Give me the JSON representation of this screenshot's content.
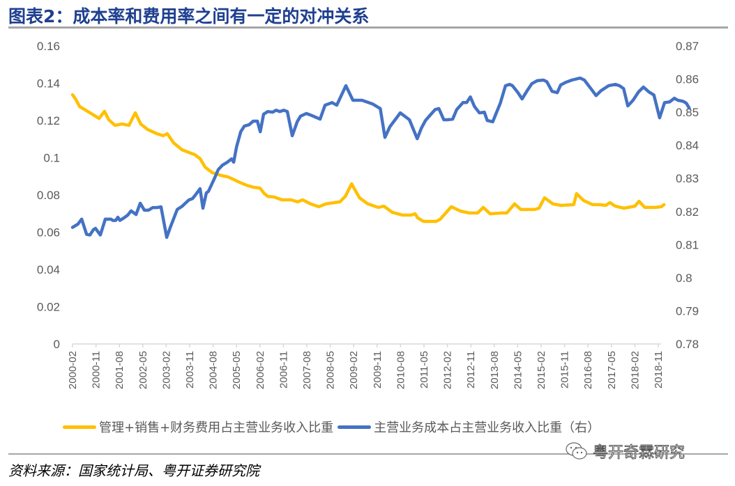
{
  "title": "图表2：成本率和费用率之间有一定的对冲关系",
  "source": "资料来源：国家统计局、粤开证券研究院",
  "watermark": {
    "icon": "wechat-icon",
    "text": "粤开奇霖研究"
  },
  "legend": [
    {
      "label": "管理+销售+财务费用占主营业务收入比重",
      "color": "#FFC000"
    },
    {
      "label": "主营业务成本占主营业务收入比重（右）",
      "color": "#4472C4"
    }
  ],
  "chart_data": {
    "type": "line",
    "title": "图表2：成本率和费用率之间有一定的对冲关系",
    "xlabel": "",
    "ylabel_left": "",
    "ylabel_right": "",
    "x_start": "2000-02",
    "x_end": "2018-12",
    "x_ticks": [
      "2000-02",
      "2000-11",
      "2001-08",
      "2002-05",
      "2003-02",
      "2003-11",
      "2004-08",
      "2005-05",
      "2006-02",
      "2006-11",
      "2007-08",
      "2008-05",
      "2009-02",
      "2009-11",
      "2010-08",
      "2011-05",
      "2012-02",
      "2012-11",
      "2013-08",
      "2014-05",
      "2015-02",
      "2015-11",
      "2016-08",
      "2017-05",
      "2018-02",
      "2018-11"
    ],
    "y_left": {
      "range": [
        0,
        0.16
      ],
      "ticks": [
        "0.16",
        "0.14",
        "0.12",
        "0.1",
        "0.08",
        "0.06",
        "0.04",
        "0.02",
        "0"
      ]
    },
    "y_right": {
      "range": [
        0.78,
        0.87
      ],
      "ticks": [
        "0.87",
        "0.86",
        "0.85",
        "0.84",
        "0.83",
        "0.82",
        "0.81",
        "0.8",
        "0.79",
        "0.78"
      ]
    },
    "grid": false,
    "legend_position": "bottom",
    "series": [
      {
        "name": "管理+销售+财务费用占主营业务收入比重",
        "axis": "left",
        "color": "#FFC000",
        "points_month_value": [
          [
            0,
            0.1338
          ],
          [
            1.3,
            0.1312
          ],
          [
            2.7,
            0.1275
          ],
          [
            6.7,
            0.1241
          ],
          [
            10.2,
            0.1211
          ],
          [
            12.3,
            0.1249
          ],
          [
            13.9,
            0.1204
          ],
          [
            16.3,
            0.1174
          ],
          [
            19,
            0.1181
          ],
          [
            21.7,
            0.1174
          ],
          [
            24.1,
            0.1241
          ],
          [
            26.2,
            0.1181
          ],
          [
            28.9,
            0.1151
          ],
          [
            32.4,
            0.1129
          ],
          [
            34.8,
            0.1118
          ],
          [
            36.4,
            0.1129
          ],
          [
            38.8,
            0.108
          ],
          [
            42,
            0.1043
          ],
          [
            45.5,
            0.1024
          ],
          [
            46.9,
            0.1017
          ],
          [
            49,
            0.0995
          ],
          [
            50.9,
            0.095
          ],
          [
            53.6,
            0.092
          ],
          [
            57,
            0.0905
          ],
          [
            59.7,
            0.0897
          ],
          [
            62.1,
            0.0882
          ],
          [
            64.3,
            0.0867
          ],
          [
            66.9,
            0.0852
          ],
          [
            69.6,
            0.0841
          ],
          [
            72,
            0.0837
          ],
          [
            73.7,
            0.0807
          ],
          [
            75,
            0.0792
          ],
          [
            77.4,
            0.0789
          ],
          [
            80.4,
            0.0774
          ],
          [
            83.9,
            0.0774
          ],
          [
            86.5,
            0.0763
          ],
          [
            88.4,
            0.0774
          ],
          [
            91.4,
            0.0752
          ],
          [
            94.6,
            0.0737
          ],
          [
            97.3,
            0.0752
          ],
          [
            102.7,
            0.0763
          ],
          [
            104.8,
            0.0793
          ],
          [
            107.2,
            0.086
          ],
          [
            110.2,
            0.0785
          ],
          [
            113.4,
            0.0752
          ],
          [
            117.4,
            0.0733
          ],
          [
            119.6,
            0.074
          ],
          [
            122.8,
            0.0707
          ],
          [
            126.8,
            0.0692
          ],
          [
            130,
            0.0692
          ],
          [
            131.6,
            0.0699
          ],
          [
            132.6,
            0.0677
          ],
          [
            134.8,
            0.0658
          ],
          [
            139.6,
            0.0658
          ],
          [
            141.2,
            0.0669
          ],
          [
            145.5,
            0.0737
          ],
          [
            148.9,
            0.0714
          ],
          [
            152.4,
            0.0703
          ],
          [
            155.6,
            0.0703
          ],
          [
            157.8,
            0.0733
          ],
          [
            160.4,
            0.0699
          ],
          [
            165,
            0.0703
          ],
          [
            166.8,
            0.0703
          ],
          [
            169.8,
            0.0752
          ],
          [
            172.2,
            0.0722
          ],
          [
            177.5,
            0.0722
          ],
          [
            179.2,
            0.0729
          ],
          [
            181.3,
            0.0785
          ],
          [
            184.5,
            0.0752
          ],
          [
            187.7,
            0.0744
          ],
          [
            192.5,
            0.0748
          ],
          [
            193.6,
            0.0807
          ],
          [
            196.3,
            0.077
          ],
          [
            199.8,
            0.0748
          ],
          [
            202.4,
            0.0748
          ],
          [
            204.8,
            0.0744
          ],
          [
            206.4,
            0.0759
          ],
          [
            208.5,
            0.074
          ],
          [
            211.8,
            0.0729
          ],
          [
            216,
            0.074
          ],
          [
            217.6,
            0.0766
          ],
          [
            219.8,
            0.0733
          ],
          [
            223.8,
            0.0733
          ],
          [
            226.2,
            0.0737
          ],
          [
            227.2,
            0.0748
          ]
        ]
      },
      {
        "name": "主营业务成本占主营业务收入比重（右）",
        "axis": "right",
        "color": "#4472C4",
        "points_month_value": [
          [
            0,
            0.8152
          ],
          [
            2.1,
            0.8162
          ],
          [
            3.5,
            0.8177
          ],
          [
            5.4,
            0.8131
          ],
          [
            6.7,
            0.8129
          ],
          [
            8,
            0.8145
          ],
          [
            8.8,
            0.8149
          ],
          [
            10.7,
            0.8129
          ],
          [
            12.6,
            0.8177
          ],
          [
            14.7,
            0.8177
          ],
          [
            15.5,
            0.8173
          ],
          [
            16.6,
            0.8173
          ],
          [
            17.4,
            0.8183
          ],
          [
            18.2,
            0.8173
          ],
          [
            19.8,
            0.8181
          ],
          [
            21.2,
            0.8189
          ],
          [
            22.5,
            0.8202
          ],
          [
            24.4,
            0.8191
          ],
          [
            26,
            0.8225
          ],
          [
            27.6,
            0.8204
          ],
          [
            29.2,
            0.8204
          ],
          [
            30.8,
            0.8212
          ],
          [
            32.4,
            0.8212
          ],
          [
            34,
            0.8214
          ],
          [
            36.2,
            0.8122
          ],
          [
            37.5,
            0.8151
          ],
          [
            40.2,
            0.8206
          ],
          [
            42.1,
            0.8216
          ],
          [
            44.7,
            0.8235
          ],
          [
            46.1,
            0.8239
          ],
          [
            47.4,
            0.8252
          ],
          [
            49,
            0.8269
          ],
          [
            50.1,
            0.821
          ],
          [
            51.4,
            0.8256
          ],
          [
            52.2,
            0.8261
          ],
          [
            54.4,
            0.8298
          ],
          [
            56,
            0.8327
          ],
          [
            57.6,
            0.834
          ],
          [
            59.5,
            0.8349
          ],
          [
            61.1,
            0.8359
          ],
          [
            61.9,
            0.8349
          ],
          [
            63,
            0.8395
          ],
          [
            64.6,
            0.8441
          ],
          [
            66,
            0.8458
          ],
          [
            67.8,
            0.8462
          ],
          [
            69.4,
            0.8473
          ],
          [
            71,
            0.8473
          ],
          [
            72.1,
            0.8441
          ],
          [
            73.4,
            0.8494
          ],
          [
            75,
            0.8502
          ],
          [
            76.9,
            0.85
          ],
          [
            78.2,
            0.8506
          ],
          [
            79.6,
            0.8502
          ],
          [
            81.2,
            0.8506
          ],
          [
            82.5,
            0.8502
          ],
          [
            84.4,
            0.8429
          ],
          [
            86.3,
            0.8471
          ],
          [
            87.6,
            0.8488
          ],
          [
            89.8,
            0.8496
          ],
          [
            91.9,
            0.849
          ],
          [
            95.1,
            0.8479
          ],
          [
            97,
            0.8521
          ],
          [
            99.7,
            0.8529
          ],
          [
            101.5,
            0.8521
          ],
          [
            105,
            0.858
          ],
          [
            107.7,
            0.8536
          ],
          [
            111.2,
            0.8536
          ],
          [
            115.2,
            0.8525
          ],
          [
            118.2,
            0.8511
          ],
          [
            120,
            0.8424
          ],
          [
            121.9,
            0.8456
          ],
          [
            125.9,
            0.8498
          ],
          [
            129.4,
            0.8477
          ],
          [
            132.4,
            0.842
          ],
          [
            134,
            0.8452
          ],
          [
            135.6,
            0.8475
          ],
          [
            137.5,
            0.8492
          ],
          [
            139.3,
            0.8508
          ],
          [
            140.7,
            0.8511
          ],
          [
            142.6,
            0.8477
          ],
          [
            143.9,
            0.8477
          ],
          [
            146,
            0.8479
          ],
          [
            147.6,
            0.8508
          ],
          [
            150,
            0.8529
          ],
          [
            151.4,
            0.8529
          ],
          [
            152.8,
            0.8546
          ],
          [
            154.4,
            0.8517
          ],
          [
            156.3,
            0.8498
          ],
          [
            158.2,
            0.85
          ],
          [
            159.3,
            0.8475
          ],
          [
            161.4,
            0.8471
          ],
          [
            162.7,
            0.8496
          ],
          [
            164.3,
            0.8527
          ],
          [
            166.3,
            0.858
          ],
          [
            167.9,
            0.8584
          ],
          [
            169,
            0.858
          ],
          [
            171.1,
            0.8559
          ],
          [
            172.7,
            0.854
          ],
          [
            174.8,
            0.8567
          ],
          [
            176.4,
            0.8586
          ],
          [
            178.5,
            0.8595
          ],
          [
            180.9,
            0.8597
          ],
          [
            182.2,
            0.8592
          ],
          [
            184.2,
            0.8563
          ],
          [
            186.2,
            0.8559
          ],
          [
            187.5,
            0.8582
          ],
          [
            189.4,
            0.859
          ],
          [
            191.8,
            0.8597
          ],
          [
            195,
            0.8603
          ],
          [
            196.6,
            0.8597
          ],
          [
            199.5,
            0.8567
          ],
          [
            201.1,
            0.855
          ],
          [
            203,
            0.8565
          ],
          [
            205.9,
            0.858
          ],
          [
            208.5,
            0.8584
          ],
          [
            210.1,
            0.858
          ],
          [
            211.7,
            0.8571
          ],
          [
            213.3,
            0.8519
          ],
          [
            215.3,
            0.8536
          ],
          [
            217.4,
            0.8561
          ],
          [
            219.3,
            0.8576
          ],
          [
            221.4,
            0.8561
          ],
          [
            223.3,
            0.8552
          ],
          [
            225.5,
            0.8483
          ],
          [
            227.4,
            0.8529
          ],
          [
            229.3,
            0.8531
          ],
          [
            231.2,
            0.8542
          ],
          [
            232.5,
            0.8536
          ],
          [
            234.5,
            0.8533
          ],
          [
            235.8,
            0.8527
          ],
          [
            236.9,
            0.8512
          ]
        ]
      }
    ]
  }
}
